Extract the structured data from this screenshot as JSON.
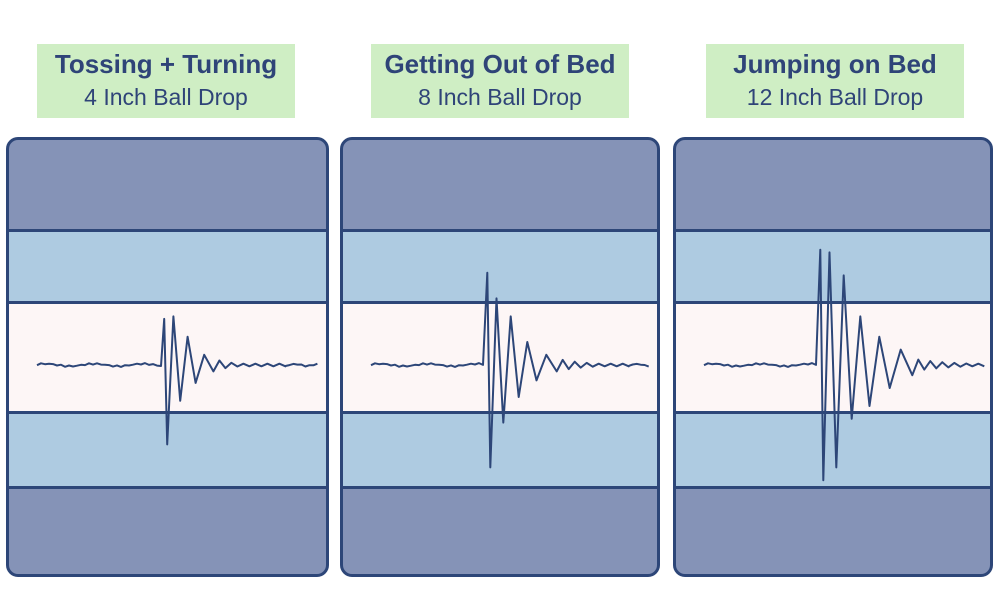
{
  "panels": [
    {
      "title": "Tossing + Turning",
      "subtitle": "4 Inch Ball Drop",
      "wave": {
        "impact": 0.48,
        "amps": [
          0.36,
          0.62,
          0.38,
          0.28,
          0.22,
          0.14,
          0.08,
          0.05
        ],
        "decay": 0.7
      }
    },
    {
      "title": "Getting Out of Bed",
      "subtitle": "8 Inch Ball Drop",
      "wave": {
        "impact": 0.45,
        "amps": [
          0.72,
          0.8,
          0.52,
          0.45,
          0.38,
          0.25,
          0.18,
          0.12,
          0.08,
          0.05
        ],
        "decay": 0.8
      }
    },
    {
      "title": "Jumping on Bed",
      "subtitle": "12 Inch Ball Drop",
      "wave": {
        "impact": 0.45,
        "amps": [
          0.9,
          0.9,
          0.88,
          0.8,
          0.7,
          0.42,
          0.38,
          0.32,
          0.22,
          0.18,
          0.12,
          0.08
        ],
        "decay": 0.85
      }
    }
  ],
  "colors": {
    "line": "#2d4678",
    "label_bg": "#cfeec4",
    "dark_band": "#8593b7",
    "blue_band": "#aecbe1",
    "center_band": "#fdf6f6"
  }
}
